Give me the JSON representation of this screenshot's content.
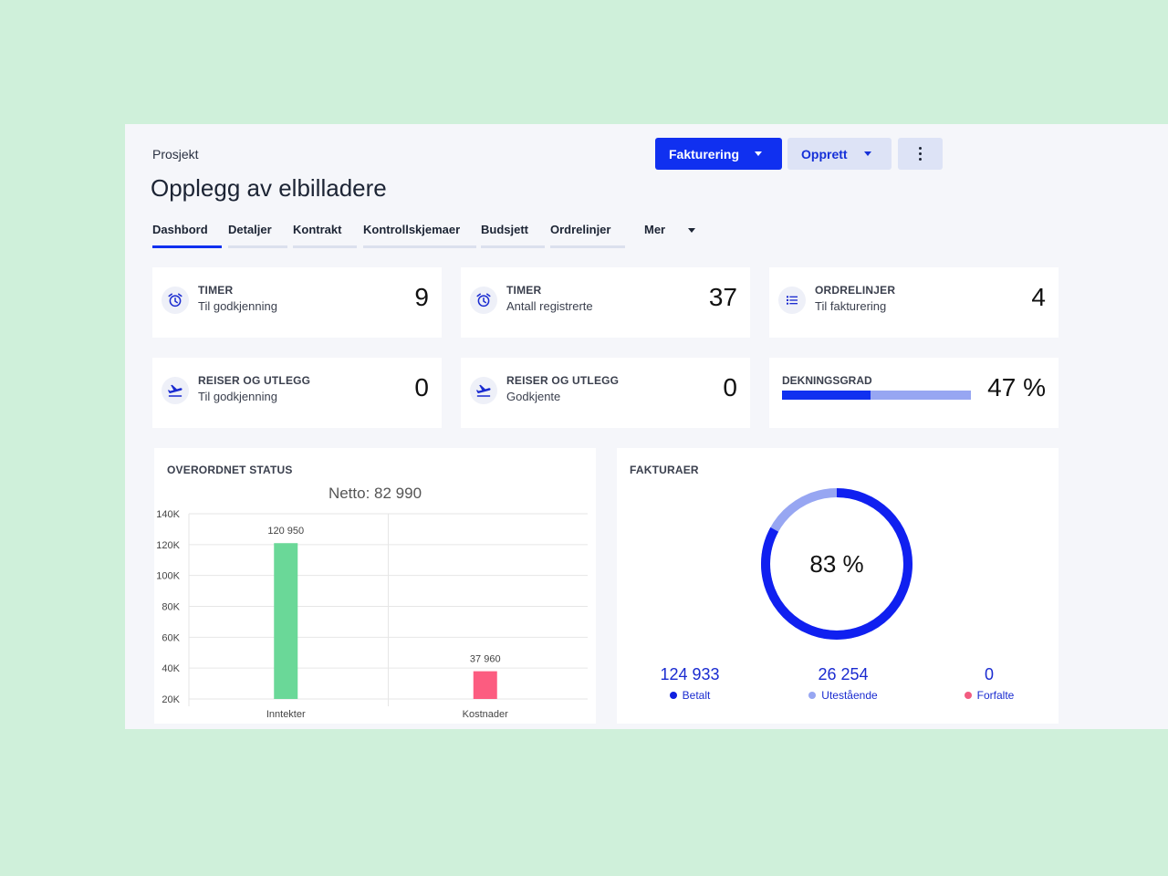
{
  "header": {
    "breadcrumb": "Prosjekt",
    "title": "Opplegg av elbilladere"
  },
  "actions": {
    "primary_label": "Fakturering",
    "secondary_label": "Opprett"
  },
  "tabs": [
    {
      "label": "Dashbord",
      "active": true
    },
    {
      "label": "Detaljer"
    },
    {
      "label": "Kontrakt"
    },
    {
      "label": "Kontrollskjemaer"
    },
    {
      "label": "Budsjett"
    },
    {
      "label": "Ordrelinjer"
    }
  ],
  "tabs_more_label": "Mer",
  "kpis": [
    {
      "label": "TIMER",
      "sub": "Til godkjenning",
      "value": "9",
      "icon": "alarm-clock-icon"
    },
    {
      "label": "TIMER",
      "sub": "Antall registrerte",
      "value": "37",
      "icon": "alarm-clock-icon"
    },
    {
      "label": "ORDRELINJER",
      "sub": "Til fakturering",
      "value": "4",
      "icon": "list-icon"
    },
    {
      "label": "REISER OG UTLEGG",
      "sub": "Til godkjenning",
      "value": "0",
      "icon": "flight-takeoff-icon"
    },
    {
      "label": "REISER OG UTLEGG",
      "sub": "Godkjente",
      "value": "0",
      "icon": "flight-takeoff-icon"
    }
  ],
  "coverage": {
    "label": "DEKNINGSGRAD",
    "value_text": "47 %",
    "fraction": 0.47,
    "fill_color": "#1030f0",
    "track_color": "#97a6f2"
  },
  "status": {
    "section_title": "OVERORDNET STATUS"
  },
  "chart_data": {
    "type": "bar",
    "title": "Netto: 82 990",
    "categories": [
      "Inntekter",
      "Kostnader"
    ],
    "values": [
      120950,
      37960
    ],
    "value_labels": [
      "120 950",
      "37 960"
    ],
    "colors": [
      "#6ad898",
      "#fc5c80"
    ],
    "ylim": [
      20000,
      140000
    ],
    "yticks": [
      20000,
      40000,
      60000,
      80000,
      100000,
      120000,
      140000
    ],
    "ytick_labels": [
      "20K",
      "40K",
      "60K",
      "80K",
      "100K",
      "120K",
      "140K"
    ],
    "grid": true,
    "xlabel": "",
    "ylabel": ""
  },
  "invoices": {
    "section_title": "FAKTURAER",
    "donut_percent": 83,
    "donut_text": "83 %",
    "donut_colors": {
      "main": "#1020f0",
      "rest": "#97a6f2"
    },
    "legend": [
      {
        "value": "124 933",
        "label": "Betalt",
        "color": "#1020e0"
      },
      {
        "value": "26 254",
        "label": "Utestående",
        "color": "#97a6f2"
      },
      {
        "value": "0",
        "label": "Forfalte",
        "color": "#f25c80"
      }
    ]
  }
}
